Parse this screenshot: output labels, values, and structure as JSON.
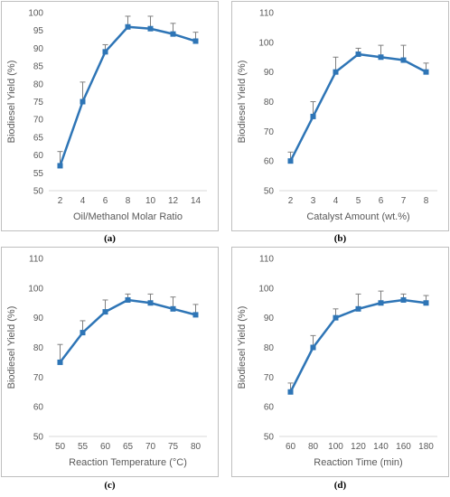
{
  "colors": {
    "series": "#2e75b6",
    "axis": "#d9d9d9",
    "text": "#595959",
    "error": "#7f7f7f",
    "border": "#bfbfbf"
  },
  "chart_data": [
    {
      "type": "line",
      "caption": "(a)",
      "xlabel": "Oil/Methanol Molar Ratio",
      "ylabel": "Biodiesel Yield (%)",
      "x": [
        2,
        4,
        6,
        8,
        10,
        12,
        14
      ],
      "y": [
        57,
        75,
        89,
        96,
        95.5,
        94,
        92
      ],
      "error": [
        4,
        5.5,
        2,
        3,
        3.5,
        3,
        2.5
      ],
      "ylim": [
        50,
        100
      ],
      "yticks": [
        "50",
        "55",
        "60",
        "65",
        "70",
        "75",
        "80",
        "85",
        "90",
        "95",
        "100"
      ],
      "xticks": [
        "2",
        "4",
        "6",
        "8",
        "10",
        "12",
        "14"
      ]
    },
    {
      "type": "line",
      "caption": "(b)",
      "xlabel": "Catalyst Amount (wt.%)",
      "ylabel": "Biodiesel Yield (%)",
      "x": [
        2,
        3,
        4,
        5,
        6,
        7,
        8
      ],
      "y": [
        60,
        75,
        90,
        96,
        95,
        94,
        90
      ],
      "error": [
        3,
        5,
        5,
        2,
        4,
        5,
        3
      ],
      "ylim": [
        50,
        110
      ],
      "yticks": [
        "50",
        "60",
        "70",
        "80",
        "90",
        "100",
        "110"
      ],
      "xticks": [
        "2",
        "3",
        "4",
        "5",
        "6",
        "7",
        "8"
      ]
    },
    {
      "type": "line",
      "caption": "(c)",
      "xlabel": "Reaction Temperature (°C)",
      "ylabel": "Biodiesel Yield (%)",
      "x": [
        50,
        55,
        60,
        65,
        70,
        75,
        80
      ],
      "y": [
        75,
        85,
        92,
        96,
        95,
        93,
        91
      ],
      "error": [
        6,
        4,
        4,
        2,
        3,
        4,
        3.5
      ],
      "ylim": [
        50,
        110
      ],
      "yticks": [
        "50",
        "60",
        "70",
        "80",
        "90",
        "100",
        "110"
      ],
      "xticks": [
        "50",
        "55",
        "60",
        "65",
        "70",
        "75",
        "80"
      ]
    },
    {
      "type": "line",
      "caption": "(d)",
      "xlabel": "Reaction Time (min)",
      "ylabel": "Biodiesel Yield (%)",
      "x": [
        60,
        80,
        100,
        120,
        140,
        160,
        180
      ],
      "y": [
        65,
        80,
        90,
        93,
        95,
        96,
        95
      ],
      "error": [
        3,
        4,
        3,
        5,
        4,
        2,
        2.5
      ],
      "ylim": [
        50,
        110
      ],
      "yticks": [
        "50",
        "60",
        "70",
        "80",
        "90",
        "100",
        "110"
      ],
      "xticks": [
        "60",
        "80",
        "100",
        "120",
        "140",
        "160",
        "180"
      ]
    }
  ]
}
